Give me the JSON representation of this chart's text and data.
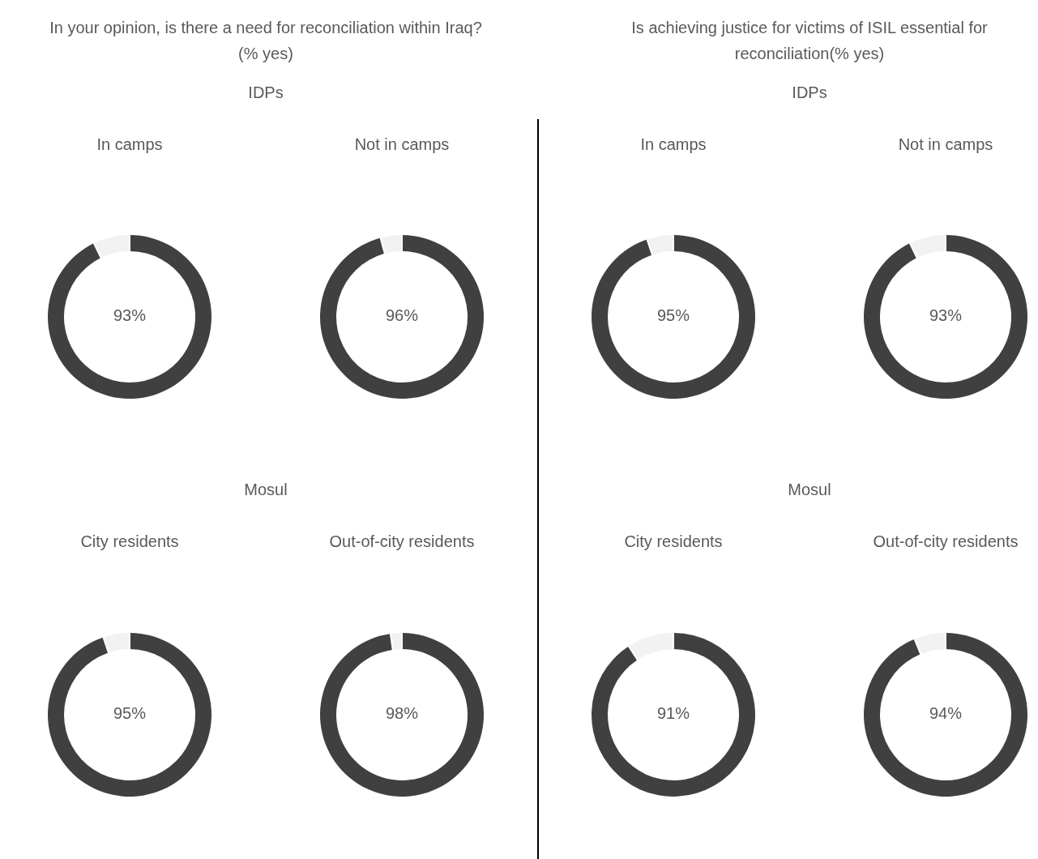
{
  "chart_data": [
    {
      "type": "donut",
      "title": "In camps",
      "annotations": [
        "In your opinion, is there a need for reconciliation within Iraq? (% yes)",
        "IDPs"
      ],
      "categories": [
        null,
        null
      ],
      "values": [
        93,
        7
      ],
      "colors": [
        "#404040",
        "#f2f2f2"
      ],
      "value_labels": [
        "93%",
        null
      ]
    },
    {
      "type": "donut",
      "title": "Not in camps",
      "categories": [
        null,
        null
      ],
      "values": [
        96,
        4
      ],
      "colors": [
        "#404040",
        "#f2f2f2"
      ],
      "value_labels": [
        "96%",
        null
      ]
    },
    {
      "type": "donut",
      "title": "City residents",
      "annotations": [
        "Mosul"
      ],
      "categories": [
        null,
        null
      ],
      "values": [
        95,
        5
      ],
      "colors": [
        "#404040",
        "#f2f2f2"
      ],
      "value_labels": [
        "95%",
        null
      ]
    },
    {
      "type": "donut",
      "title": "Out-of-city residents",
      "categories": [
        null,
        null
      ],
      "values": [
        98,
        2
      ],
      "colors": [
        "#404040",
        "#f2f2f2"
      ],
      "value_labels": [
        "98%",
        null
      ]
    },
    {
      "type": "donut",
      "title": "In camps",
      "annotations": [
        "Is achieving justice for victims of ISIL essential for reconciliation(% yes)",
        "IDPs"
      ],
      "categories": [
        null,
        null
      ],
      "values": [
        95,
        5
      ],
      "colors": [
        "#404040",
        "#f2f2f2"
      ],
      "value_labels": [
        "95%",
        null
      ]
    },
    {
      "type": "donut",
      "title": "Not in camps",
      "categories": [
        null,
        null
      ],
      "values": [
        93,
        7
      ],
      "colors": [
        "#404040",
        "#f2f2f2"
      ],
      "value_labels": [
        "93%",
        null
      ]
    },
    {
      "type": "donut",
      "title": "City residents",
      "annotations": [
        "Mosul"
      ],
      "categories": [
        null,
        null
      ],
      "values": [
        91,
        9
      ],
      "colors": [
        "#404040",
        "#f2f2f2"
      ],
      "value_labels": [
        "91%",
        null
      ]
    },
    {
      "type": "donut",
      "title": "Out-of-city residents",
      "categories": [
        null,
        null
      ],
      "values": [
        94,
        6
      ],
      "colors": [
        "#404040",
        "#f2f2f2"
      ],
      "value_labels": [
        "94%",
        null
      ]
    }
  ]
}
